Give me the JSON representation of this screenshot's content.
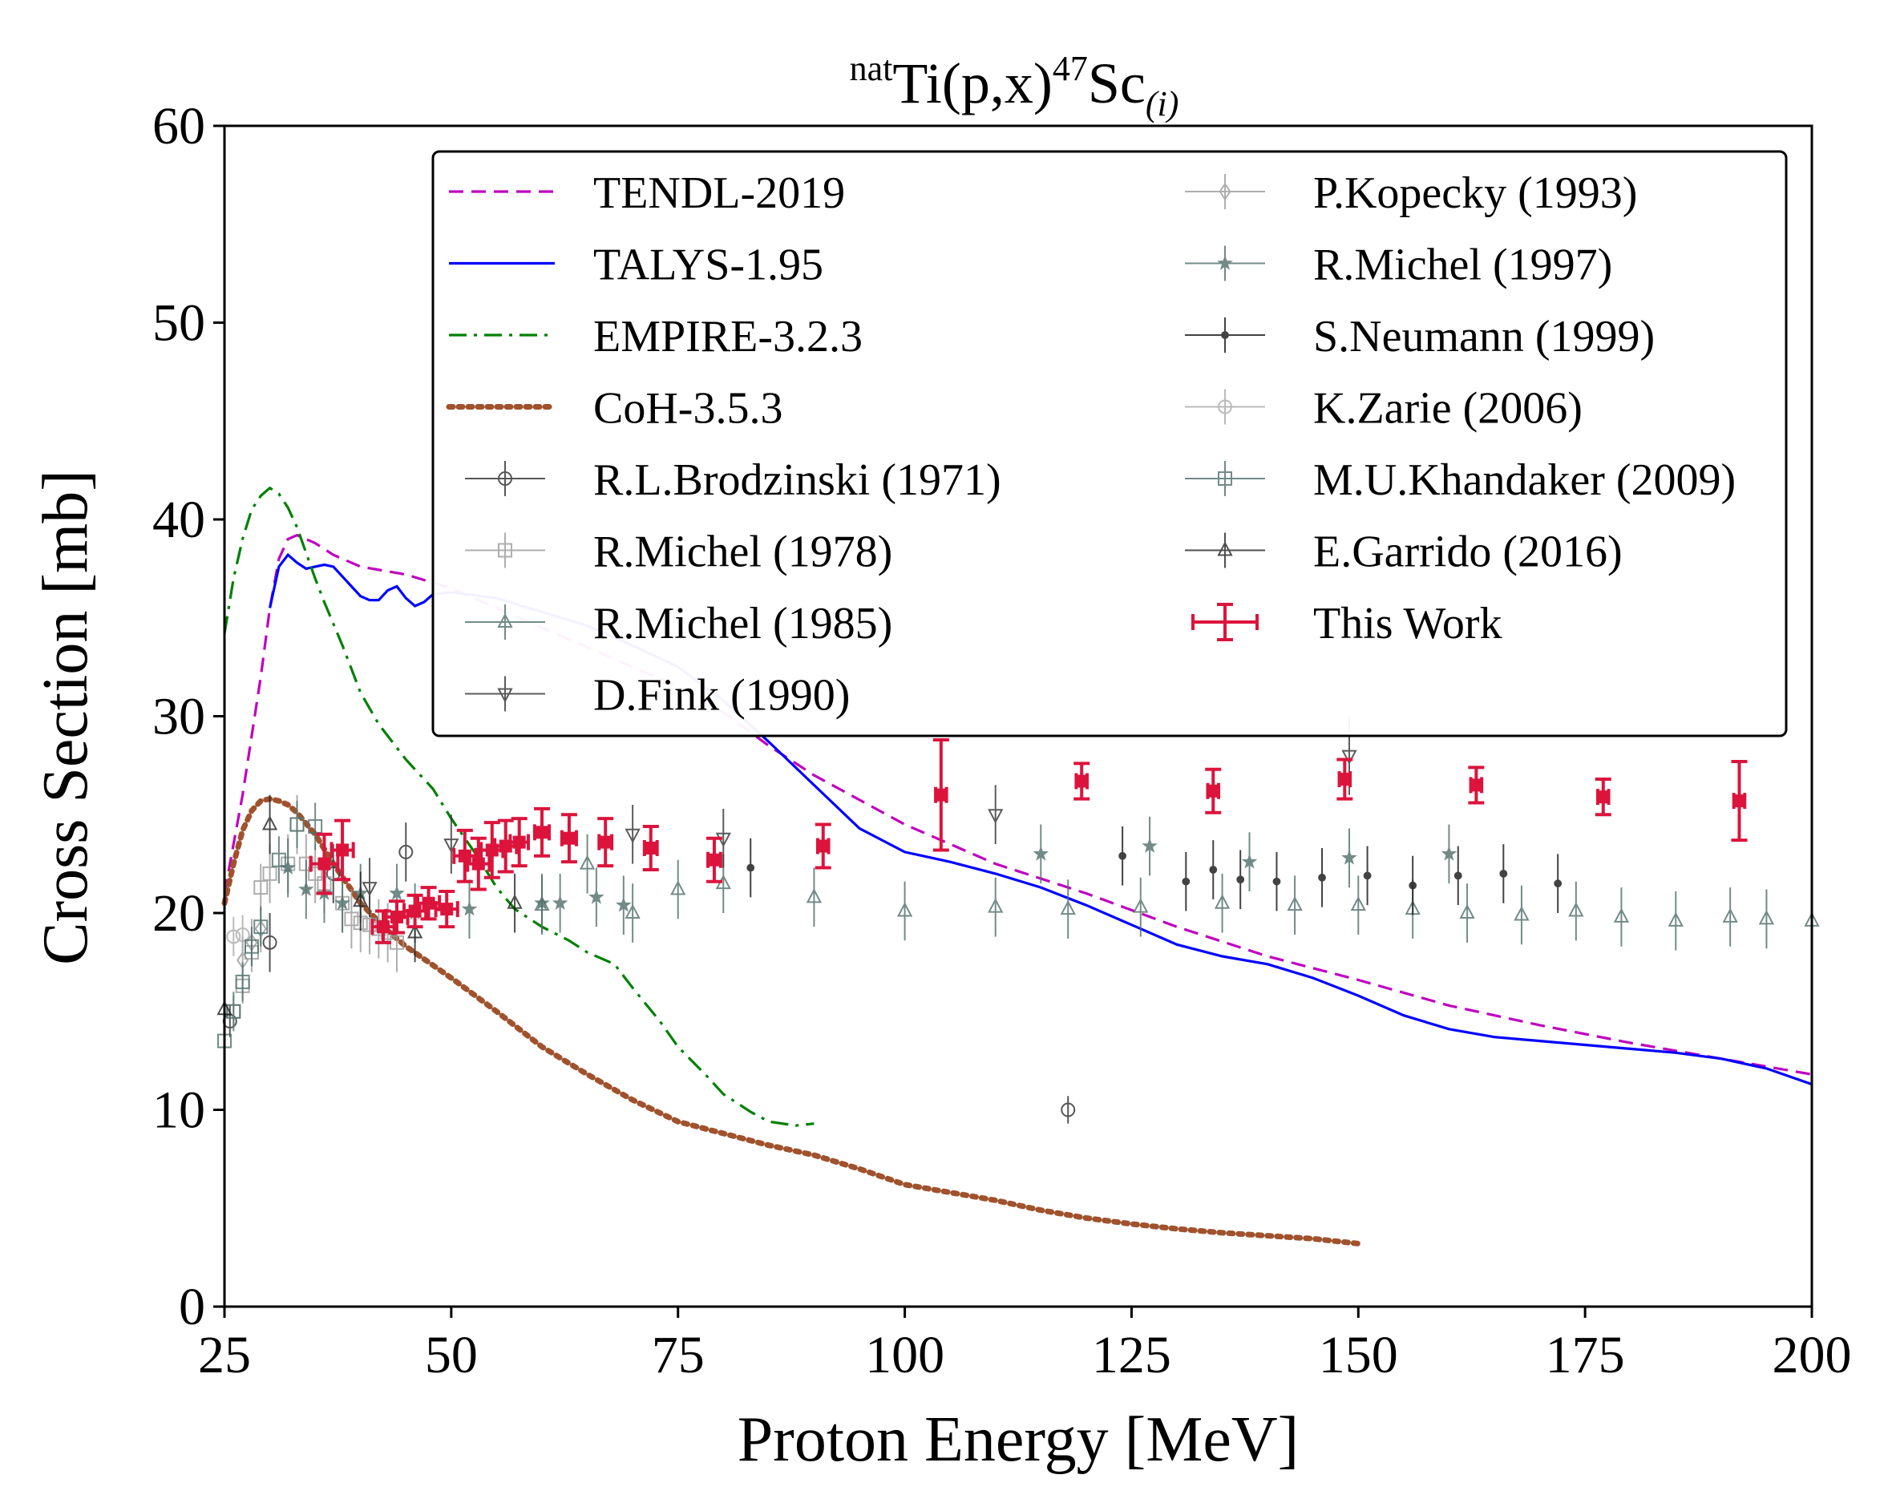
{
  "chart_data": {
    "type": "scatter",
    "title": {
      "pre": "nat",
      "main": "Ti(p,x)",
      "mass": "47",
      "element": "Sc",
      "sub": "(i)"
    },
    "xlabel": "Proton Energy [MeV]",
    "ylabel": "Cross Section [mb]",
    "xlim": [
      25,
      200
    ],
    "ylim": [
      0,
      60
    ],
    "xticks": [
      25,
      50,
      75,
      100,
      125,
      150,
      175,
      200
    ],
    "yticks": [
      0,
      10,
      20,
      30,
      40,
      50,
      60
    ],
    "grid": false,
    "legend_position": "top-right",
    "models": [
      {
        "name": "TENDL-2019",
        "color": "#bf00bf",
        "style": "dashed",
        "x": [
          25,
          27,
          29,
          30,
          31,
          32,
          33,
          35,
          37,
          40,
          45,
          50,
          55,
          60,
          65,
          70,
          75,
          80,
          85,
          90,
          100,
          110,
          120,
          130,
          140,
          150,
          160,
          170,
          180,
          190,
          200
        ],
        "y": [
          21,
          26,
          32,
          35.5,
          38,
          39,
          39.2,
          38.8,
          38.2,
          37.6,
          37.2,
          36.5,
          35.5,
          34.5,
          33.5,
          32.5,
          31.5,
          30.2,
          28.5,
          27,
          24.5,
          22.5,
          21,
          19.3,
          17.8,
          16.6,
          15.3,
          14.3,
          13.4,
          12.6,
          11.8
        ]
      },
      {
        "name": "TALYS-1.95",
        "color": "#0000ff",
        "style": "solid",
        "x": [
          30,
          31,
          32,
          33,
          34,
          35,
          36,
          37,
          38,
          39,
          40,
          41,
          42,
          43,
          44,
          45,
          46,
          47,
          48,
          50,
          55,
          60,
          65,
          70,
          75,
          80,
          85,
          90,
          95,
          100,
          105,
          110,
          115,
          120,
          125,
          130,
          135,
          140,
          145,
          150,
          155,
          160,
          165,
          170,
          175,
          180,
          185,
          190,
          195,
          200
        ],
        "y": [
          35.5,
          37.6,
          38.2,
          37.8,
          37.5,
          37.6,
          37.7,
          37.6,
          37.1,
          36.6,
          36.1,
          35.9,
          35.9,
          36.4,
          36.6,
          36.0,
          35.6,
          35.8,
          36.2,
          36.3,
          36,
          35.3,
          34.6,
          33.6,
          32.5,
          30.8,
          28.7,
          26.5,
          24.3,
          23.1,
          22.6,
          22.0,
          21.3,
          20.4,
          19.4,
          18.4,
          17.8,
          17.4,
          16.7,
          15.8,
          14.8,
          14.1,
          13.7,
          13.5,
          13.3,
          13.1,
          12.9,
          12.6,
          12.1,
          11.3
        ]
      },
      {
        "name": "EMPIRE-3.2.3",
        "color": "#008000",
        "style": "dashdot",
        "x": [
          25,
          26,
          27,
          28,
          29,
          30,
          31,
          32,
          33,
          34,
          35,
          36,
          38,
          40,
          42,
          45,
          48,
          50,
          53,
          55,
          57,
          60,
          63,
          65,
          68,
          70,
          73,
          75,
          78,
          80,
          83,
          85,
          88,
          90
        ],
        "y": [
          34.2,
          37,
          39,
          40.5,
          41.2,
          41.6,
          41.3,
          40.6,
          39.6,
          38.3,
          37,
          35.8,
          33.6,
          31.2,
          29.6,
          27.8,
          26.3,
          24.8,
          22.8,
          21.3,
          20.2,
          19.3,
          18.6,
          18.0,
          17.4,
          16.2,
          14.5,
          13.2,
          11.8,
          10.8,
          9.9,
          9.4,
          9.2,
          9.3
        ]
      },
      {
        "name": "CoH-3.5.3",
        "color": "#a0522d",
        "style": "dotted",
        "x": [
          25,
          26,
          27,
          28,
          29,
          30,
          31,
          32,
          33,
          35,
          37,
          40,
          43,
          45,
          50,
          55,
          60,
          65,
          70,
          75,
          80,
          85,
          90,
          95,
          100,
          105,
          110,
          115,
          120,
          125,
          130,
          135,
          140,
          145,
          150
        ],
        "y": [
          20.5,
          22.5,
          24.2,
          25.2,
          25.7,
          25.8,
          25.7,
          25.5,
          25.1,
          24,
          22.5,
          20.5,
          19.1,
          18.3,
          16.7,
          15,
          13.2,
          11.8,
          10.5,
          9.4,
          8.8,
          8.2,
          7.7,
          7.0,
          6.2,
          5.8,
          5.4,
          4.9,
          4.5,
          4.2,
          3.95,
          3.75,
          3.6,
          3.45,
          3.2
        ]
      }
    ],
    "experiments": [
      {
        "name": "R.L.Brodzinski (1971)",
        "marker": "circle",
        "color": "#444444",
        "alpha": 0.9,
        "points": [
          [
            25.6,
            14.5,
            0.8
          ],
          [
            30,
            18.5,
            1.5
          ],
          [
            37,
            22,
            1.5
          ],
          [
            45,
            23.1,
            1.5
          ],
          [
            118,
            10,
            0.7
          ]
        ]
      },
      {
        "name": "R.Michel (1978)",
        "marker": "square",
        "color": "#999999",
        "alpha": 0.8,
        "points": [
          [
            26,
            15,
            0.8
          ],
          [
            27,
            16.3,
            0.9
          ],
          [
            28,
            18,
            1
          ],
          [
            29,
            21.3,
            1.2
          ],
          [
            30,
            22,
            1.5
          ],
          [
            32,
            22.5,
            1.5
          ],
          [
            33,
            24.5,
            1.5
          ],
          [
            34,
            22.5,
            1.5
          ],
          [
            35,
            22,
            1.5
          ],
          [
            36,
            21.5,
            1.5
          ],
          [
            38,
            20.5,
            1.5
          ],
          [
            39,
            19.7,
            1.5
          ],
          [
            40,
            19.5,
            1.5
          ],
          [
            41,
            19.4,
            1.5
          ],
          [
            42,
            19.2,
            1.5
          ],
          [
            43,
            19,
            1.5
          ],
          [
            44,
            18.5,
            1.5
          ]
        ]
      },
      {
        "name": "R.Michel (1985)",
        "marker": "triangle-up",
        "color": "#4f6f6a",
        "alpha": 0.8,
        "points": [
          [
            60,
            20.4,
            1.5
          ],
          [
            65,
            22.5,
            1.5
          ],
          [
            70,
            20,
            1.5
          ],
          [
            75,
            21.2,
            1.5
          ],
          [
            80,
            21.5,
            1.5
          ],
          [
            90,
            20.8,
            1.5
          ],
          [
            100,
            20.1,
            1.5
          ],
          [
            110,
            20.3,
            1.5
          ],
          [
            118,
            20.2,
            1.5
          ],
          [
            126,
            20.3,
            1.5
          ],
          [
            135,
            20.5,
            1.5
          ],
          [
            143,
            20.4,
            1.5
          ],
          [
            150,
            20.4,
            1.5
          ],
          [
            156,
            20.2,
            1.5
          ],
          [
            162,
            20.0,
            1.5
          ],
          [
            168,
            19.9,
            1.5
          ],
          [
            174,
            20.1,
            1.5
          ],
          [
            179,
            19.8,
            1.5
          ],
          [
            185,
            19.6,
            1.5
          ],
          [
            191,
            19.8,
            1.5
          ],
          [
            195,
            19.7,
            1.5
          ],
          [
            200,
            19.6,
            1.5
          ]
        ]
      },
      {
        "name": "D.Fink (1990)",
        "marker": "triangle-down",
        "color": "#333333",
        "alpha": 0.8,
        "points": [
          [
            41,
            21.3,
            1.5
          ],
          [
            50,
            23.5,
            1.5
          ],
          [
            70,
            24,
            1.5
          ],
          [
            80,
            23.8,
            1.5
          ],
          [
            110,
            25,
            1.5
          ],
          [
            149,
            28,
            2
          ]
        ]
      },
      {
        "name": "P.Kopecky (1993)",
        "marker": "diamond",
        "color": "#9a9a9a",
        "alpha": 0.8,
        "points": [
          [
            27,
            17.6,
            1.2
          ],
          [
            28,
            18.5,
            1.2
          ],
          [
            29,
            19.2,
            1.2
          ]
        ]
      },
      {
        "name": "R.Michel (1997)",
        "marker": "star",
        "color": "#4f6f6a",
        "alpha": 0.8,
        "points": [
          [
            32,
            22.3,
            1.5
          ],
          [
            34,
            21.2,
            1.5
          ],
          [
            36,
            21,
            1.5
          ],
          [
            38,
            20.5,
            1.5
          ],
          [
            40,
            21,
            1.5
          ],
          [
            44,
            21,
            1.5
          ],
          [
            46,
            20,
            1.5
          ],
          [
            52,
            20.2,
            1.5
          ],
          [
            60,
            20.5,
            1.5
          ],
          [
            62,
            20.5,
            1.5
          ],
          [
            66,
            20.8,
            1.5
          ],
          [
            69,
            20.4,
            1.5
          ],
          [
            115,
            23,
            1.5
          ],
          [
            127,
            23.4,
            1.5
          ],
          [
            138,
            22.6,
            1.5
          ],
          [
            149,
            22.8,
            1.5
          ],
          [
            160,
            23,
            1.5
          ]
        ]
      },
      {
        "name": "S.Neumann (1999)",
        "marker": "dot",
        "color": "#222222",
        "alpha": 0.85,
        "points": [
          [
            83,
            22.3,
            1.5
          ],
          [
            124,
            22.9,
            1.5
          ],
          [
            131,
            21.6,
            1.5
          ],
          [
            134,
            22.2,
            1.5
          ],
          [
            137,
            21.7,
            1.5
          ],
          [
            141,
            21.6,
            1.5
          ],
          [
            146,
            21.8,
            1.5
          ],
          [
            151,
            21.9,
            1.5
          ],
          [
            156,
            21.4,
            1.5
          ],
          [
            161,
            21.9,
            1.5
          ],
          [
            166,
            22,
            1.5
          ],
          [
            172,
            21.5,
            1.5
          ]
        ]
      },
      {
        "name": "K.Zarie (2006)",
        "marker": "circle",
        "color": "#aaaaaa",
        "alpha": 0.8,
        "points": [
          [
            26,
            18.8,
            1
          ],
          [
            27,
            18.9,
            1
          ]
        ]
      },
      {
        "name": "M.U.Khandaker (2009)",
        "marker": "square",
        "color": "#4f6f6a",
        "alpha": 0.8,
        "points": [
          [
            25,
            13.5,
            1
          ],
          [
            26,
            15,
            1
          ],
          [
            27,
            16.5,
            1
          ],
          [
            28,
            18.3,
            1
          ],
          [
            29,
            19.3,
            1
          ],
          [
            31,
            22.7,
            1.2
          ],
          [
            33,
            24.5,
            1.2
          ],
          [
            35,
            24.4,
            1.2
          ]
        ]
      },
      {
        "name": "E.Garrido (2016)",
        "marker": "triangle-up",
        "color": "#222222",
        "alpha": 0.8,
        "points": [
          [
            25,
            15.1,
            1
          ],
          [
            30,
            24.5,
            1.5
          ],
          [
            40,
            20.6,
            1.5
          ],
          [
            46,
            19,
            1.5
          ],
          [
            57,
            20.5,
            1.5
          ]
        ]
      }
    ],
    "this_work": {
      "name": "This Work",
      "color": "#dc143c",
      "points": [
        [
          36,
          22.5,
          1.5,
          1.5
        ],
        [
          38,
          23.2,
          1.2,
          1.5
        ],
        [
          42.5,
          19.3,
          1.2,
          0.8
        ],
        [
          44,
          19.8,
          1.2,
          0.8
        ],
        [
          46,
          20.1,
          1.2,
          0.8
        ],
        [
          47.5,
          20.5,
          1.2,
          0.8
        ],
        [
          49.5,
          20.2,
          1.2,
          0.9
        ],
        [
          51.5,
          22.9,
          1.2,
          1.3
        ],
        [
          53,
          22.5,
          1.2,
          1.3
        ],
        [
          54.5,
          23.2,
          1.2,
          1.4
        ],
        [
          56,
          23.4,
          1.2,
          1.3
        ],
        [
          57.5,
          23.6,
          1.0,
          1.2
        ],
        [
          60,
          24.1,
          0.8,
          1.2
        ],
        [
          63,
          23.8,
          0.8,
          1.2
        ],
        [
          67,
          23.6,
          0.7,
          1.2
        ],
        [
          72,
          23.3,
          0.7,
          1.1
        ],
        [
          79,
          22.7,
          0.7,
          1.1
        ],
        [
          91,
          23.4,
          0.6,
          1.1
        ],
        [
          104,
          26,
          0.6,
          2.8
        ],
        [
          119.5,
          26.7,
          0.6,
          0.9
        ],
        [
          134,
          26.2,
          0.6,
          1.1
        ],
        [
          148.5,
          26.8,
          0.6,
          1.0
        ],
        [
          163,
          26.5,
          0.6,
          0.9
        ],
        [
          177,
          25.9,
          0.6,
          0.9
        ],
        [
          192,
          25.7,
          0.6,
          2.0
        ]
      ]
    }
  }
}
